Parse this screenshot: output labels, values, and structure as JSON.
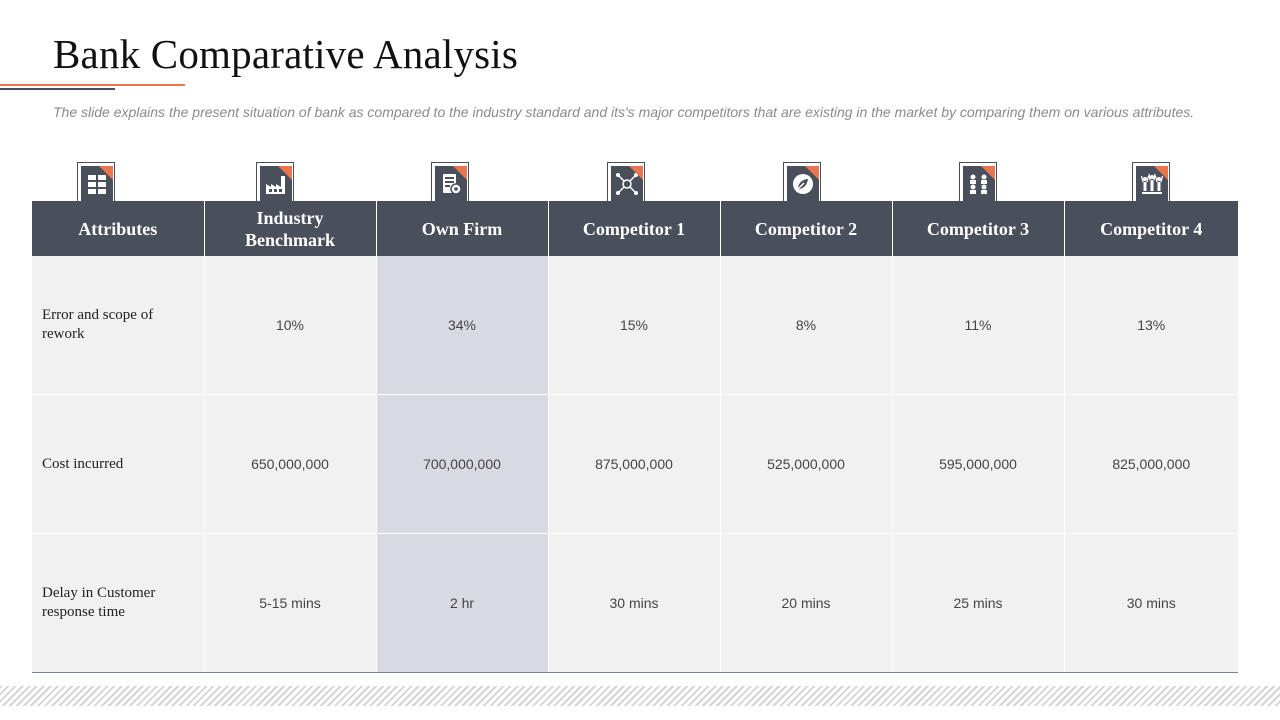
{
  "slide": {
    "title": "Bank Comparative Analysis",
    "subtitle": "The slide explains the present situation of bank as compared to the industry standard and its's major competitors that are existing in the market by comparing them on various attributes."
  },
  "colors": {
    "header_bg": "#4a4f5c",
    "accent": "#e9764f",
    "cell_bg": "#f1f1f1",
    "highlight_col": "#d7dae1"
  },
  "icons": [
    "cabinet-icon",
    "factory-icon",
    "document-settings-icon",
    "network-icon",
    "leaf-badge-icon",
    "team-meeting-icon",
    "celebrating-people-icon"
  ],
  "table": {
    "headers": [
      "Attributes",
      "Industry Benchmark",
      "Own Firm",
      "Competitor 1",
      "Competitor 2",
      "Competitor 3",
      "Competitor 4"
    ],
    "rows": [
      {
        "attribute": "Error and scope of rework",
        "values": [
          "10%",
          "34%",
          "15%",
          "8%",
          "11%",
          "13%"
        ]
      },
      {
        "attribute": "Cost incurred",
        "values": [
          "650,000,000",
          "700,000,000",
          "875,000,000",
          "525,000,000",
          "595,000,000",
          "825,000,000"
        ]
      },
      {
        "attribute": "Delay in Customer response time",
        "values": [
          "5-15 mins",
          "2 hr",
          "30 mins",
          "20 mins",
          "25 mins",
          "30 mins"
        ]
      }
    ]
  }
}
